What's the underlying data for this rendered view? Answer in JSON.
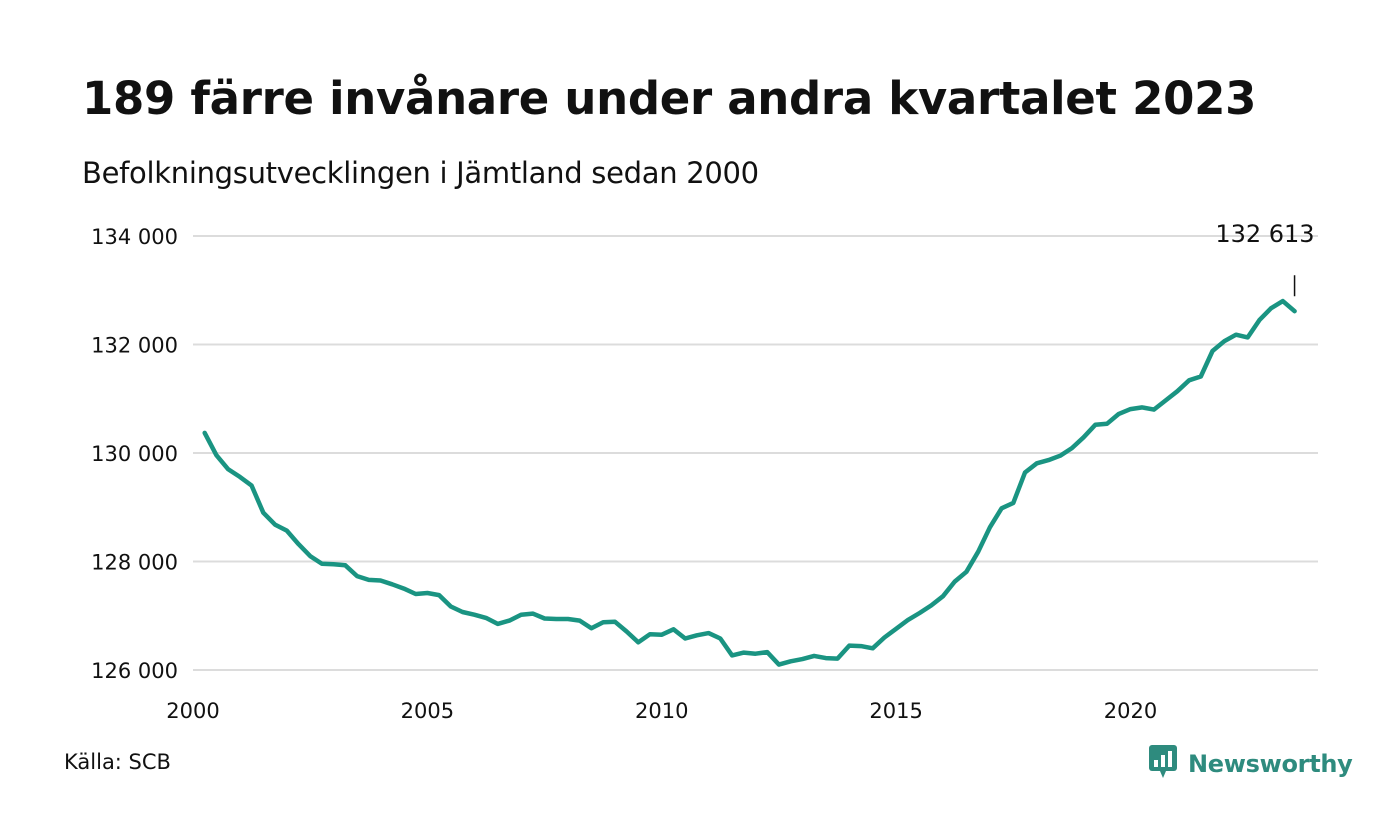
{
  "header": {
    "title": "189 färre invånare under andra kvartalet 2023",
    "subtitle": "Befolkningsutvecklingen i Jämtland sedan 2000"
  },
  "footer": {
    "source": "Källa: SCB",
    "brand": "Newsworthy",
    "brand_icon": "bar-chart-speech-bubble-icon"
  },
  "colors": {
    "line": "#1a9482",
    "grid": "#dcdcdc",
    "brand": "#2e8b7e"
  },
  "chart_data": {
    "type": "line",
    "title": "189 färre invånare under andra kvartalet 2023",
    "subtitle": "Befolkningsutvecklingen i Jämtland sedan 2000",
    "xlabel": "",
    "ylabel": "",
    "xlim": [
      2000,
      2024
    ],
    "ylim": [
      126000,
      134000
    ],
    "x_ticks": [
      2000,
      2005,
      2010,
      2015,
      2020
    ],
    "x_tick_labels": [
      "2000",
      "2005",
      "2010",
      "2015",
      "2020"
    ],
    "y_ticks": [
      126000,
      128000,
      130000,
      132000,
      134000
    ],
    "y_tick_labels": [
      "126 000",
      "128 000",
      "130 000",
      "132 000",
      "134 000"
    ],
    "grid": "horizontal",
    "annotation": {
      "text": "132 613",
      "x": 2023.5,
      "y": 132613
    },
    "series": [
      {
        "x": [
          2000.25,
          2000.5,
          2000.75,
          2001,
          2001.25,
          2001.5,
          2001.75,
          2002,
          2002.25,
          2002.5,
          2002.75,
          2003,
          2003.25,
          2003.5,
          2003.75,
          2004,
          2004.25,
          2004.5,
          2004.75,
          2005,
          2005.25,
          2005.5,
          2005.75,
          2006,
          2006.25,
          2006.5,
          2006.75,
          2007,
          2007.25,
          2007.5,
          2007.75,
          2008,
          2008.25,
          2008.5,
          2008.75,
          2009,
          2009.25,
          2009.5,
          2009.75,
          2010,
          2010.25,
          2010.5,
          2010.75,
          2011,
          2011.25,
          2011.5,
          2011.75,
          2012,
          2012.25,
          2012.5,
          2012.75,
          2013,
          2013.25,
          2013.5,
          2013.75,
          2014,
          2014.25,
          2014.5,
          2014.75,
          2015,
          2015.25,
          2015.5,
          2015.75,
          2016,
          2016.25,
          2016.5,
          2016.75,
          2017,
          2017.25,
          2017.5,
          2017.75,
          2018,
          2018.25,
          2018.5,
          2018.75,
          2019,
          2019.25,
          2019.5,
          2019.75,
          2020,
          2020.25,
          2020.5,
          2020.75,
          2021,
          2021.25,
          2021.5,
          2021.75,
          2022,
          2022.25,
          2022.5,
          2022.75,
          2023,
          2023.25,
          2023.5
        ],
        "values": [
          130370,
          129960,
          129700,
          129560,
          129400,
          128900,
          128680,
          128570,
          128320,
          128100,
          127960,
          127950,
          127930,
          127730,
          127660,
          127650,
          127580,
          127500,
          127400,
          127420,
          127380,
          127170,
          127070,
          127020,
          126960,
          126850,
          126910,
          127020,
          127040,
          126950,
          126940,
          126940,
          126910,
          126770,
          126880,
          126890,
          126710,
          126510,
          126660,
          126650,
          126750,
          126580,
          126640,
          126680,
          126580,
          126270,
          126320,
          126300,
          126330,
          126100,
          126160,
          126200,
          126260,
          126220,
          126210,
          126450,
          126440,
          126400,
          126600,
          126760,
          126920,
          127050,
          127190,
          127360,
          127630,
          127810,
          128180,
          128630,
          128980,
          129080,
          129640,
          129810,
          129870,
          129950,
          130090,
          130290,
          130520,
          130540,
          130720,
          130810,
          130840,
          130800,
          130970,
          131140,
          131340,
          131410,
          131880,
          132060,
          132180,
          132130,
          132450,
          132670,
          132800,
          132613
        ]
      }
    ]
  }
}
